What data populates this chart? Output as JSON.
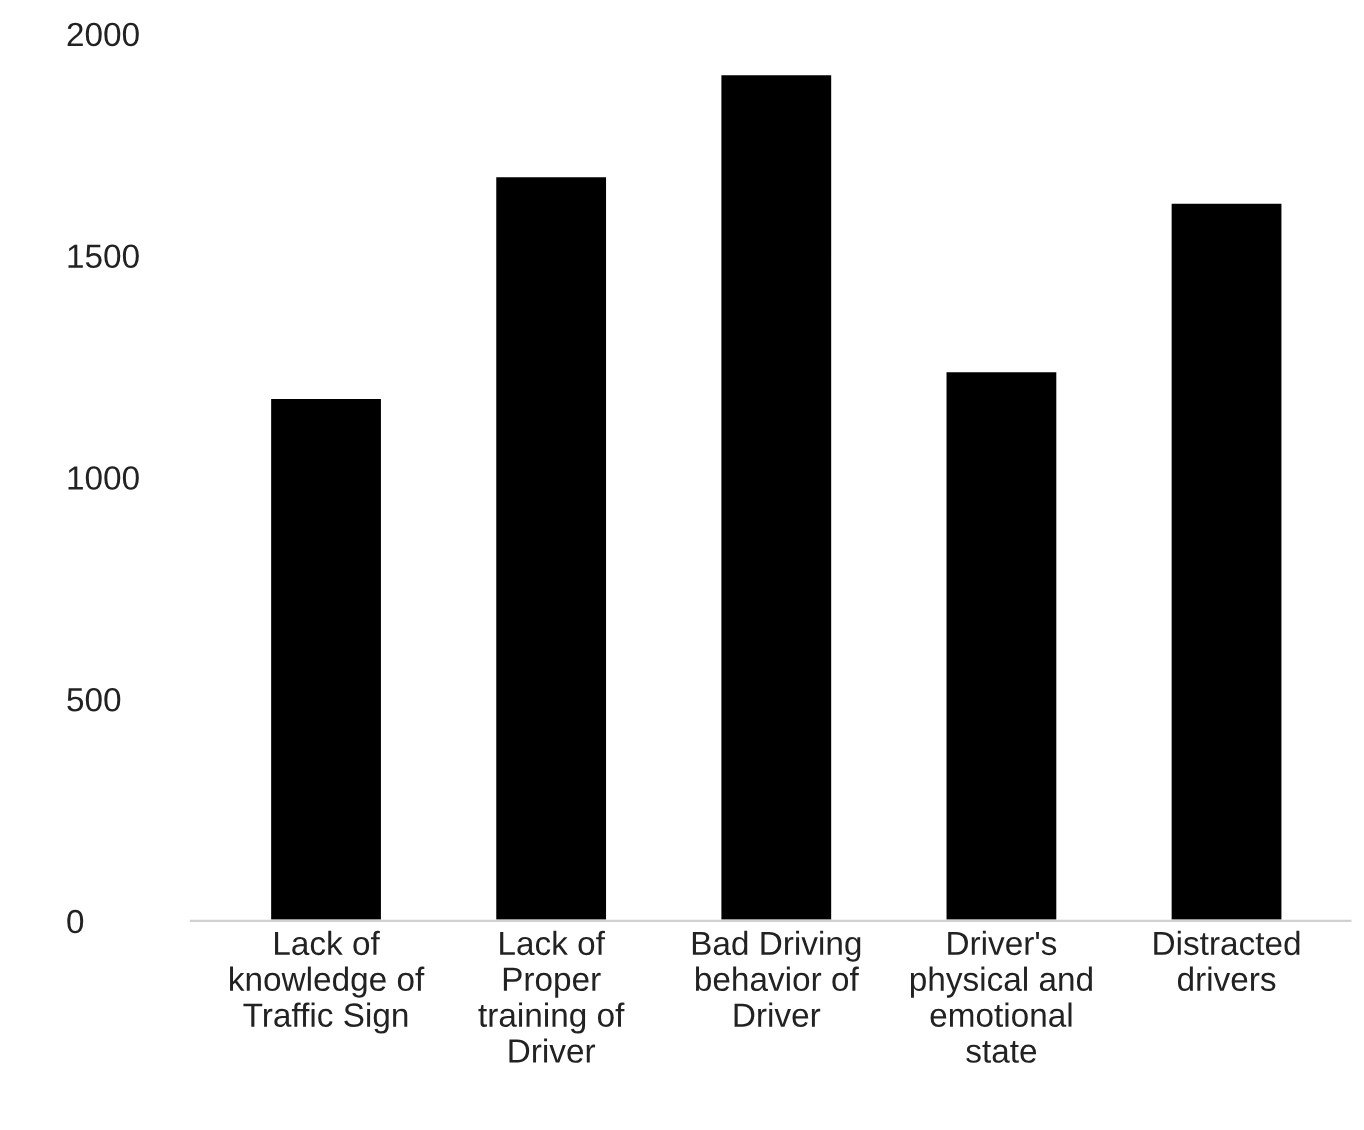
{
  "chart_data": {
    "type": "bar",
    "categories": [
      "Lack of\nknowledge of\nTraffic Sign",
      "Lack of\nProper\ntraining of\nDriver",
      "Bad Driving\nbehavior of\nDriver",
      "Driver's\nphysical and\nemotional\nstate",
      "Distracted\ndrivers"
    ],
    "values": [
      1180,
      1680,
      1910,
      1240,
      1620
    ],
    "color": "#000000",
    "ylim": [
      0,
      2000
    ],
    "yticks": [
      0,
      500,
      1000,
      1500,
      2000
    ],
    "grid": false
  }
}
